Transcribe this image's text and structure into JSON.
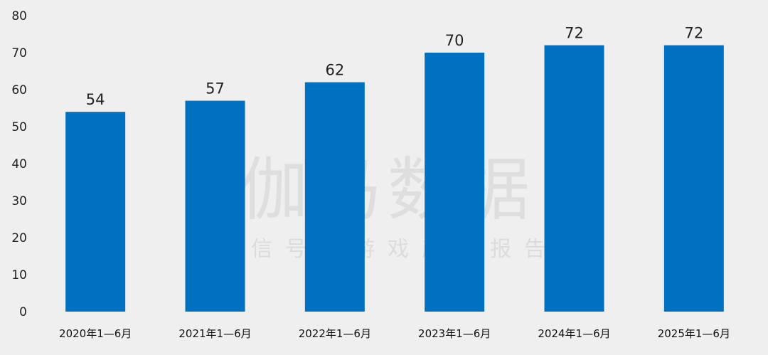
{
  "chart_data": {
    "type": "bar",
    "categories": [
      "2020年1—6月",
      "2021年1—6月",
      "2022年1—6月",
      "2023年1—6月",
      "2024年1—6月",
      "2025年1—6月"
    ],
    "values": [
      54,
      57,
      62,
      70,
      72,
      72
    ],
    "data_labels": [
      "54",
      "57",
      "62",
      "70",
      "72",
      "72"
    ],
    "yticks": [
      0,
      10,
      20,
      30,
      40,
      50,
      60,
      70,
      80
    ],
    "ylim": [
      0,
      80
    ],
    "bar_color": "#0070c0",
    "grid": false,
    "legend": "none"
  },
  "watermark": {
    "main": "伽马数据",
    "sub": "微信号：游戏产业报告"
  }
}
